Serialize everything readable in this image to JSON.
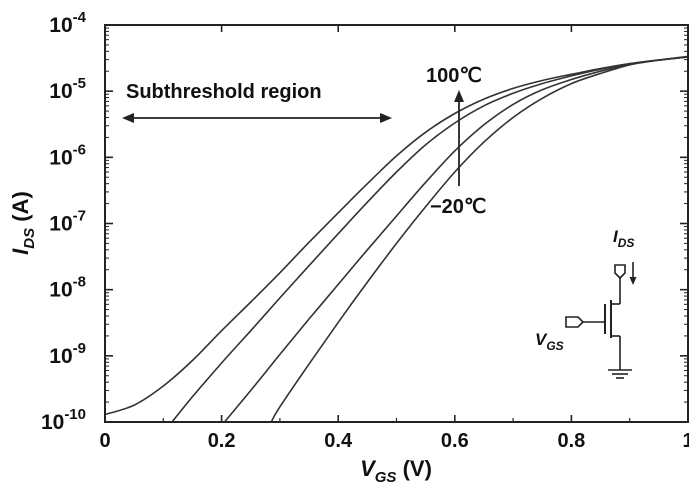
{
  "chart_data": {
    "type": "line",
    "xlabel": {
      "main": "V",
      "sub": "GS",
      "unit": " (V)"
    },
    "ylabel": {
      "main": "I",
      "sub": "DS",
      "unit": " (A)"
    },
    "xlim": [
      0,
      1.0
    ],
    "ylim": [
      1e-10,
      0.0001
    ],
    "yscale": "log",
    "grid": false,
    "x_ticks": [
      {
        "value": 0,
        "label": "0"
      },
      {
        "value": 0.2,
        "label": "0.2"
      },
      {
        "value": 0.4,
        "label": "0.4"
      },
      {
        "value": 0.6,
        "label": "0.6"
      },
      {
        "value": 0.8,
        "label": "0.8"
      },
      {
        "value": 1.0,
        "label": "1"
      }
    ],
    "y_ticks": [
      {
        "value": -10,
        "base": "10",
        "exp": "-10"
      },
      {
        "value": -9,
        "base": "10",
        "exp": "-9"
      },
      {
        "value": -8,
        "base": "10",
        "exp": "-8"
      },
      {
        "value": -7,
        "base": "10",
        "exp": "-7"
      },
      {
        "value": -6,
        "base": "10",
        "exp": "-6"
      },
      {
        "value": -5,
        "base": "10",
        "exp": "-5"
      },
      {
        "value": -4,
        "base": "10",
        "exp": "-4"
      }
    ],
    "series": [
      {
        "x": [
          0.0,
          0.05,
          0.1,
          0.15,
          0.2,
          0.25,
          0.3,
          0.35,
          0.4,
          0.45,
          0.5,
          0.55,
          0.6,
          0.65,
          0.7,
          0.75,
          0.8,
          0.85,
          0.9,
          0.95,
          1.0
        ],
        "y": [
          1.3e-10,
          1.8e-10,
          3.5e-10,
          8.5e-10,
          2.4e-09,
          6.5e-09,
          1.8e-08,
          5.2e-08,
          1.45e-07,
          4e-07,
          1.05e-06,
          2.4e-06,
          4.6e-06,
          7.6e-06,
          1.1e-05,
          1.45e-05,
          1.8e-05,
          2.2e-05,
          2.6e-05,
          2.95e-05,
          3.3e-05
        ]
      },
      {
        "x": [
          0.115,
          0.15,
          0.2,
          0.25,
          0.3,
          0.35,
          0.4,
          0.45,
          0.5,
          0.55,
          0.6,
          0.65,
          0.7,
          0.75,
          0.8,
          0.85,
          0.9,
          0.95,
          1.0
        ],
        "y": [
          1e-10,
          2.4e-10,
          7.8e-10,
          2.4e-09,
          7.5e-09,
          2.3e-08,
          7e-08,
          2.1e-07,
          6e-07,
          1.55e-06,
          3.3e-06,
          6e-06,
          9.3e-06,
          1.3e-05,
          1.7e-05,
          2.15e-05,
          2.6e-05,
          2.95e-05,
          3.3e-05
        ]
      },
      {
        "x": [
          0.205,
          0.25,
          0.3,
          0.35,
          0.4,
          0.45,
          0.5,
          0.55,
          0.6,
          0.65,
          0.7,
          0.75,
          0.8,
          0.85,
          0.9,
          0.95,
          1.0
        ],
        "y": [
          1e-10,
          3e-10,
          1.05e-09,
          3.6e-09,
          1.2e-08,
          4e-08,
          1.3e-07,
          4.2e-07,
          1.25e-06,
          3.1e-06,
          6.3e-06,
          1.05e-05,
          1.5e-05,
          2e-05,
          2.55e-05,
          2.95e-05,
          3.3e-05
        ]
      },
      {
        "x": [
          0.285,
          0.3,
          0.35,
          0.4,
          0.45,
          0.5,
          0.55,
          0.6,
          0.65,
          0.7,
          0.75,
          0.8,
          0.85,
          0.9,
          0.95,
          1.0
        ],
        "y": [
          1e-10,
          1.7e-10,
          7.5e-10,
          3.2e-09,
          1.3e-08,
          5e-08,
          1.8e-07,
          6e-07,
          1.7e-06,
          4e-06,
          7.8e-06,
          1.3e-05,
          1.85e-05,
          2.5e-05,
          2.95e-05,
          3.35e-05
        ]
      }
    ],
    "annotations": {
      "region_label": "Subthreshold region",
      "temp_high": "100℃",
      "temp_low": "−20℃",
      "inset_ids": {
        "main": "I",
        "sub": "DS"
      },
      "inset_vgs": {
        "main": "V",
        "sub": "GS"
      }
    }
  }
}
